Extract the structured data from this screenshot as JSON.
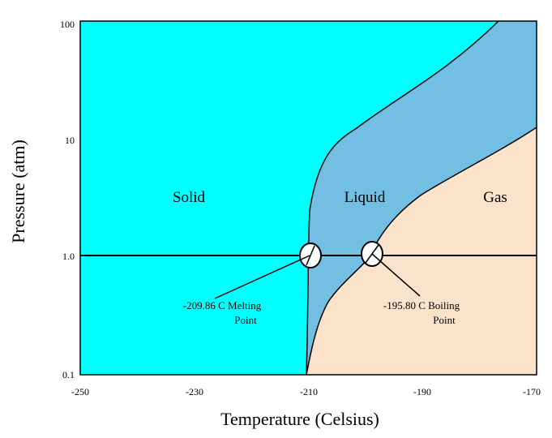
{
  "diagram": {
    "type": "phase-diagram",
    "x_axis": {
      "label": "Temperature (Celsius)",
      "range": [
        -250,
        -170
      ],
      "ticks": [
        "-250",
        "-230",
        "-210",
        "-190",
        "-170"
      ]
    },
    "y_axis": {
      "label": "Pressure (atm)",
      "scale": "log",
      "range": [
        0.1,
        100
      ],
      "ticks": [
        "100",
        "10",
        "1.0",
        "0.1"
      ]
    },
    "regions": {
      "solid": {
        "label": "Solid",
        "color": "#00FFFF"
      },
      "liquid": {
        "label": "Liquid",
        "color": "#73BEE3"
      },
      "gas": {
        "label": "Gas",
        "color": "#FAE3CA"
      }
    },
    "reference_pressure_atm": 1.0,
    "melting_point": {
      "temperature_c": -209.86,
      "label_line1": "-209.86 C Melting",
      "label_line2": "Point"
    },
    "boiling_point": {
      "temperature_c": -195.8,
      "label_line1": "-195.80 C Boiling",
      "label_line2": "Point"
    },
    "colors": {
      "line": "#000000",
      "background": "#FFFFFF"
    }
  }
}
